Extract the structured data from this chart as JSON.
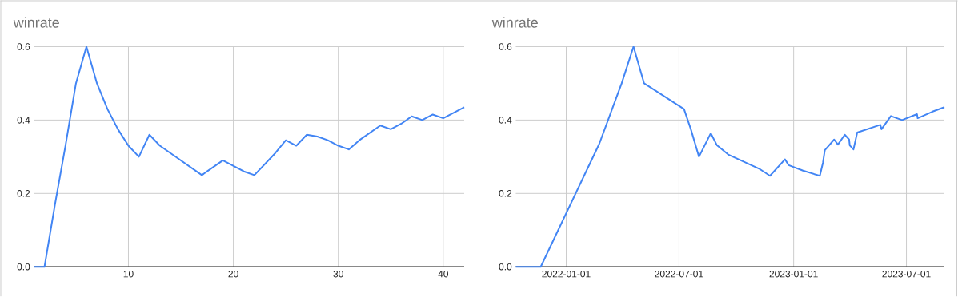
{
  "chart_data": [
    {
      "type": "line",
      "title": "winrate",
      "color": "#4285f4",
      "grid": true,
      "x": [
        1,
        2,
        3,
        4,
        5,
        6,
        7,
        8,
        9,
        10,
        11,
        12,
        13,
        14,
        15,
        16,
        17,
        18,
        19,
        20,
        21,
        22,
        23,
        24,
        25,
        26,
        27,
        28,
        29,
        30,
        31,
        32,
        33,
        34,
        35,
        36,
        37,
        38,
        39,
        40,
        41,
        42
      ],
      "values": [
        0,
        0,
        0.17,
        0.33,
        0.5,
        0.6,
        0.5,
        0.43,
        0.375,
        0.33,
        0.3,
        0.36,
        0.33,
        0.31,
        0.29,
        0.27,
        0.25,
        0.27,
        0.29,
        0.275,
        0.26,
        0.25,
        0.28,
        0.31,
        0.345,
        0.33,
        0.36,
        0.355,
        0.345,
        0.33,
        0.32,
        0.345,
        0.365,
        0.385,
        0.375,
        0.39,
        0.41,
        0.4,
        0.415,
        0.405,
        0.42,
        0.435
      ],
      "xlim": [
        1,
        42
      ],
      "ylim": [
        0,
        0.6
      ],
      "xticks": [
        10,
        20,
        30,
        40
      ],
      "yticks": [
        {
          "value": 0,
          "label": "0.0"
        },
        0.2,
        0.4,
        0.6
      ]
    },
    {
      "type": "line",
      "title": "winrate",
      "color": "#4285f4",
      "grid": true,
      "x": [
        "2021-10-12",
        "2021-11-21",
        "2022-02-23",
        "2022-03-31",
        "2022-04-19",
        "2022-05-06",
        "2022-07-09",
        "2022-07-20",
        "2022-08-02",
        "2022-08-21",
        "2022-08-31",
        "2022-09-18",
        "2022-11-08",
        "2022-11-24",
        "2022-12-18",
        "2022-12-24",
        "2023-01-16",
        "2023-02-12",
        "2023-02-17",
        "2023-02-20",
        "2023-03-07",
        "2023-03-13",
        "2023-03-24",
        "2023-03-31",
        "2023-04-01",
        "2023-04-07",
        "2023-04-13",
        "2023-05-20",
        "2023-05-22",
        "2023-06-06",
        "2023-06-24",
        "2023-07-18",
        "2023-07-19",
        "2023-08-12",
        "2023-08-31"
      ],
      "values": [
        0,
        0,
        0.335,
        0.5,
        0.6,
        0.5,
        0.43,
        0.375,
        0.3,
        0.364,
        0.331,
        0.306,
        0.266,
        0.248,
        0.293,
        0.277,
        0.262,
        0.248,
        0.284,
        0.318,
        0.347,
        0.333,
        0.36,
        0.347,
        0.331,
        0.32,
        0.366,
        0.387,
        0.375,
        0.411,
        0.4,
        0.416,
        0.405,
        0.423,
        0.435
      ],
      "xlim": [
        "2021-10-12",
        "2023-08-31"
      ],
      "ylim": [
        0,
        0.6
      ],
      "xticks": [
        "2022-01-01",
        "2022-07-01",
        "2023-01-01",
        "2023-07-01"
      ],
      "yticks": [
        {
          "value": 0,
          "label": "0.0"
        },
        0.2,
        0.4,
        0.6
      ]
    }
  ]
}
